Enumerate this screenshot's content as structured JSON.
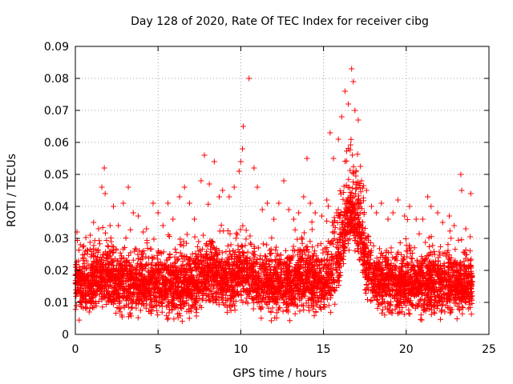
{
  "chart_data": {
    "type": "scatter",
    "title": "Day 128 of 2020, Rate Of TEC Index for receiver cibg",
    "xlabel": "GPS time / hours",
    "ylabel": "ROTI / TECUs",
    "xlim": [
      0,
      25
    ],
    "ylim": [
      0,
      0.09
    ],
    "grid": true,
    "x_ticks": [
      "0",
      "5",
      "10",
      "15",
      "20",
      "25"
    ],
    "y_ticks": [
      "0",
      "0.01",
      "0.02",
      "0.03",
      "0.04",
      "0.05",
      "0.06",
      "0.07",
      "0.08",
      "0.09"
    ],
    "marker": "+",
    "marker_color": "#ff0000",
    "series": [
      {
        "points": [
          [
            0.1,
            0.032
          ],
          [
            0.3,
            0.028
          ],
          [
            0.6,
            0.026
          ],
          [
            0.9,
            0.031
          ],
          [
            1.1,
            0.035
          ],
          [
            1.4,
            0.033
          ],
          [
            1.6,
            0.046
          ],
          [
            1.75,
            0.052
          ],
          [
            1.8,
            0.044
          ],
          [
            2.1,
            0.034
          ],
          [
            2.3,
            0.04
          ],
          [
            2.6,
            0.034
          ],
          [
            2.9,
            0.041
          ],
          [
            3.2,
            0.046
          ],
          [
            3.5,
            0.038
          ],
          [
            3.8,
            0.037
          ],
          [
            4.1,
            0.032
          ],
          [
            4.3,
            0.033
          ],
          [
            4.7,
            0.041
          ],
          [
            5.0,
            0.038
          ],
          [
            5.3,
            0.034
          ],
          [
            5.6,
            0.041
          ],
          [
            5.9,
            0.036
          ],
          [
            6.3,
            0.043
          ],
          [
            6.6,
            0.046
          ],
          [
            6.9,
            0.041
          ],
          [
            7.2,
            0.036
          ],
          [
            7.6,
            0.048
          ],
          [
            7.8,
            0.056
          ],
          [
            8.1,
            0.047
          ],
          [
            8.4,
            0.054
          ],
          [
            8.7,
            0.043
          ],
          [
            8.9,
            0.045
          ],
          [
            9.3,
            0.043
          ],
          [
            9.6,
            0.046
          ],
          [
            9.9,
            0.051
          ],
          [
            10.0,
            0.054
          ],
          [
            10.1,
            0.058
          ],
          [
            10.15,
            0.065
          ],
          [
            10.5,
            0.08
          ],
          [
            10.8,
            0.052
          ],
          [
            11.0,
            0.046
          ],
          [
            11.3,
            0.039
          ],
          [
            11.6,
            0.041
          ],
          [
            12.0,
            0.036
          ],
          [
            12.3,
            0.041
          ],
          [
            12.6,
            0.048
          ],
          [
            12.9,
            0.039
          ],
          [
            13.2,
            0.036
          ],
          [
            13.5,
            0.038
          ],
          [
            13.8,
            0.043
          ],
          [
            14.0,
            0.055
          ],
          [
            14.2,
            0.041
          ],
          [
            14.5,
            0.038
          ],
          [
            14.9,
            0.037
          ],
          [
            15.2,
            0.042
          ],
          [
            15.4,
            0.063
          ],
          [
            15.6,
            0.055
          ],
          [
            15.9,
            0.061
          ],
          [
            16.1,
            0.068
          ],
          [
            16.3,
            0.076
          ],
          [
            16.5,
            0.072
          ],
          [
            16.7,
            0.083
          ],
          [
            16.8,
            0.079
          ],
          [
            16.9,
            0.07
          ],
          [
            17.1,
            0.067
          ],
          [
            17.3,
            0.048
          ],
          [
            17.6,
            0.045
          ],
          [
            17.9,
            0.04
          ],
          [
            18.2,
            0.038
          ],
          [
            18.5,
            0.041
          ],
          [
            18.9,
            0.036
          ],
          [
            19.2,
            0.038
          ],
          [
            19.5,
            0.042
          ],
          [
            19.9,
            0.037
          ],
          [
            20.2,
            0.04
          ],
          [
            20.6,
            0.036
          ],
          [
            21.0,
            0.036
          ],
          [
            21.3,
            0.043
          ],
          [
            21.5,
            0.04
          ],
          [
            21.9,
            0.038
          ],
          [
            22.2,
            0.035
          ],
          [
            22.6,
            0.037
          ],
          [
            22.9,
            0.034
          ],
          [
            23.3,
            0.05
          ],
          [
            23.35,
            0.045
          ],
          [
            23.6,
            0.033
          ],
          [
            23.9,
            0.044
          ]
        ]
      }
    ]
  }
}
